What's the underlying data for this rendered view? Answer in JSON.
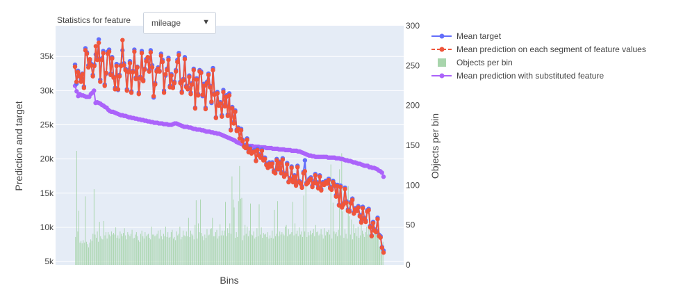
{
  "chart_data": {
    "type": "line",
    "control_label": "Statistics for feature",
    "selected_feature": "mileage",
    "xlabel": "Bins",
    "ylabel": "Prediction and target",
    "y2label": "Objects per bin",
    "ylim": [
      4500,
      39500
    ],
    "y2lim": [
      0,
      300
    ],
    "yticks": [
      5000,
      10000,
      15000,
      20000,
      25000,
      30000,
      35000
    ],
    "yticklabels": [
      "5k",
      "10k",
      "15k",
      "20k",
      "25k",
      "30k",
      "35k"
    ],
    "y2ticks": [
      0,
      50,
      100,
      150,
      200,
      250,
      300
    ],
    "y2ticklabels": [
      "0",
      "50",
      "100",
      "150",
      "200",
      "250",
      "300"
    ],
    "legend_position": "top-right",
    "colors": {
      "mean_target": "#636efa",
      "mean_prediction": "#ef553b",
      "objects_per_bin": "#a8d5ac",
      "substituted": "#ab63fa",
      "plot_bg": "#e5ecf6",
      "grid": "#ffffff"
    },
    "series": [
      {
        "name": "Mean target",
        "values": [
          33800,
          31000,
          32900,
          32300,
          31700,
          32500,
          30600,
          36200,
          35600,
          33700,
          34400,
          33900,
          32300,
          33800,
          35300,
          34700,
          37500,
          31600,
          34700,
          35800,
          30900,
          32500,
          35700,
          36000,
          32500,
          34900,
          32000,
          30400,
          33900,
          30100,
          32300,
          33800,
          35900,
          34000,
          33200,
          30200,
          33000,
          34300,
          29900,
          32900,
          36000,
          31900,
          33500,
          29700,
          32000,
          35800,
          31600,
          33200,
          34600,
          34700,
          33000,
          35900,
          33700,
          29000,
          31100,
          33000,
          33400,
          32900,
          35400,
          34500,
          30000,
          32200,
          33200,
          34800,
          30700,
          32400,
          30600,
          31300,
          33000,
          34500,
          35500,
          31300,
          29900,
          31700,
          34900,
          30700,
          30400,
          32200,
          29700,
          31100,
          33200,
          27500,
          31800,
          29500,
          33000,
          32800,
          29200,
          31000,
          27500,
          31300,
          32500,
          30700,
          28200,
          33300,
          29600,
          26100,
          29800,
          28000,
          28300,
          26400,
          30100,
          27900,
          29300,
          26500,
          29600,
          24300,
          27600,
          25400,
          27100,
          24300,
          24600,
          23000,
          24400,
          22800,
          22000,
          21800,
          23000,
          21200,
          21700,
          21000,
          21200,
          21300,
          19800,
          21500,
          20700,
          20400,
          21400,
          20000,
          20200,
          19300,
          18800,
          19500,
          19100,
          19500,
          18300,
          18100,
          20000,
          18700,
          19600,
          18100,
          20100,
          17600,
          17900,
          19400,
          16700,
          17200,
          18900,
          16800,
          17600,
          16300,
          19000,
          16800,
          16600,
          16000,
          18100,
          19800,
          16500,
          16700,
          17100,
          17300,
          16100,
          16700,
          17800,
          16600,
          15900,
          17600,
          15600,
          16600,
          16400,
          16800,
          16600,
          17100,
          15900,
          15700,
          16800,
          16300,
          14700,
          16200,
          13300,
          16100,
          13100,
          13500,
          15800,
          13800,
          12600,
          12500,
          13700,
          14200,
          12200,
          12800,
          12600,
          13100,
          11800,
          10900,
          13000,
          11400,
          11000,
          12500,
          12700,
          10200,
          8800,
          10800,
          9700,
          9500,
          11400,
          8900,
          8700,
          7100,
          6600
        ]
      },
      {
        "name": "Mean prediction on each segment of feature values",
        "values": [
          33500,
          31300,
          32700,
          32100,
          31300,
          32400,
          30400,
          35900,
          35400,
          33400,
          34600,
          33700,
          32100,
          33600,
          36500,
          34500,
          37000,
          31300,
          34500,
          35500,
          30700,
          32600,
          35400,
          35700,
          32300,
          34700,
          31900,
          30200,
          33600,
          30200,
          32100,
          33600,
          37400,
          33700,
          33000,
          30000,
          32700,
          34000,
          29700,
          32700,
          35700,
          31700,
          33400,
          29500,
          31800,
          35500,
          31400,
          33100,
          34300,
          34900,
          32800,
          35600,
          33400,
          29200,
          30900,
          32800,
          33200,
          32800,
          35100,
          34200,
          29700,
          32400,
          33000,
          34500,
          30500,
          32200,
          30400,
          31100,
          32800,
          34200,
          35200,
          31100,
          29700,
          31500,
          34600,
          30500,
          30200,
          32000,
          29500,
          30900,
          33000,
          27400,
          31600,
          29300,
          32800,
          32600,
          29400,
          30700,
          27300,
          31100,
          32300,
          30500,
          28400,
          33000,
          29400,
          26000,
          29600,
          27800,
          28100,
          26200,
          29800,
          27700,
          29100,
          26300,
          29300,
          24200,
          27400,
          25200,
          26900,
          24100,
          24400,
          23000,
          24200,
          22600,
          21800,
          21600,
          22800,
          21000,
          21500,
          20800,
          21000,
          21100,
          19700,
          21300,
          20500,
          20200,
          21200,
          19800,
          20000,
          19100,
          18700,
          19300,
          18900,
          19300,
          18100,
          17900,
          19800,
          18500,
          19400,
          17900,
          19900,
          17400,
          17700,
          19200,
          16600,
          17000,
          18700,
          16600,
          17400,
          16100,
          18800,
          16600,
          16400,
          15800,
          17900,
          18200,
          16300,
          16500,
          16900,
          17100,
          15900,
          16500,
          17600,
          16400,
          15700,
          17400,
          15400,
          16400,
          16200,
          16600,
          16400,
          16900,
          15700,
          15500,
          16600,
          16100,
          14500,
          16000,
          13200,
          15900,
          12900,
          13300,
          15600,
          13600,
          12400,
          12300,
          13500,
          14000,
          12000,
          12600,
          12400,
          12900,
          11600,
          10700,
          12800,
          11200,
          10800,
          12300,
          12500,
          10000,
          8700,
          10600,
          9500,
          9300,
          11200,
          8700,
          8500,
          7000,
          6300
        ]
      },
      {
        "name": "Objects per bin",
        "values": [
          35,
          143,
          42,
          68,
          28,
          30,
          27,
          31,
          28,
          86,
          29,
          26,
          22,
          28,
          32,
          30,
          39,
          95,
          38,
          34,
          42,
          29,
          54,
          36,
          33,
          32,
          55,
          37,
          41,
          33,
          41,
          38,
          36,
          42,
          38,
          40,
          38,
          47,
          34,
          37,
          33,
          42,
          39,
          36,
          40,
          46,
          37,
          32,
          41,
          38,
          36,
          39,
          44,
          33,
          34,
          38,
          41,
          36,
          31,
          29,
          39,
          43,
          36,
          33,
          41,
          36,
          38,
          39,
          34,
          32,
          48,
          38,
          38,
          36,
          37,
          39,
          43,
          33,
          44,
          36,
          32,
          39,
          36,
          48,
          35,
          41,
          34,
          35,
          41,
          44,
          33,
          35,
          31,
          42,
          37,
          39,
          48,
          32,
          35,
          43,
          37,
          36,
          42,
          36,
          59,
          35,
          43,
          39,
          37,
          32,
          50,
          81,
          33,
          52,
          41,
          82,
          40,
          36,
          31,
          38,
          34,
          45,
          37,
          38,
          45,
          46,
          59,
          36,
          36,
          41,
          44,
          33,
          36,
          51,
          37,
          43,
          37,
          43,
          79,
          36,
          46,
          40,
          52,
          39,
          111,
          82,
          72,
          34,
          41,
          35,
          80,
          124,
          83,
          84,
          31,
          37,
          50,
          39,
          48,
          36,
          43,
          77,
          38,
          37,
          42,
          33,
          35,
          46,
          36,
          76,
          38,
          47,
          34,
          40,
          38,
          39,
          35,
          41,
          33,
          37,
          34,
          43,
          33,
          69,
          36,
          39,
          80,
          36,
          42,
          38,
          41,
          39,
          37,
          48,
          50,
          36,
          45,
          38,
          39,
          41,
          79,
          37,
          52,
          39,
          43,
          36,
          47,
          38,
          42,
          35,
          87,
          42,
          108,
          35,
          41,
          37,
          43,
          38,
          40,
          45,
          36,
          50,
          41,
          42,
          37,
          39,
          45,
          38,
          33,
          46,
          37,
          42,
          41,
          44,
          38,
          126,
          33,
          78,
          42,
          39,
          41,
          36,
          44,
          120,
          37,
          140,
          67,
          34,
          45,
          39,
          33,
          99,
          61,
          38,
          57,
          32,
          51,
          40,
          46,
          36,
          48,
          34,
          37,
          55,
          43,
          39,
          35,
          41,
          48,
          38,
          45,
          36,
          42,
          39,
          34,
          47,
          40,
          38,
          36,
          44,
          23,
          31,
          21,
          29
        ]
      },
      {
        "name": "Mean prediction with substituted feature",
        "values": [
          30700,
          29900,
          29200,
          29500,
          29300,
          29300,
          29200,
          29100,
          29100,
          29100,
          29500,
          29700,
          30000,
          28200,
          28300,
          28200,
          28100,
          27900,
          27800,
          27600,
          27500,
          27200,
          27000,
          26900,
          26900,
          26800,
          26700,
          26600,
          26500,
          26400,
          26400,
          26300,
          26300,
          26200,
          26100,
          26100,
          26000,
          26000,
          25900,
          25900,
          25800,
          25800,
          25700,
          25700,
          25600,
          25600,
          25500,
          25500,
          25400,
          25400,
          25300,
          25300,
          25300,
          25200,
          25200,
          25200,
          25100,
          25100,
          25100,
          25000,
          25000,
          25000,
          25100,
          25200,
          25200,
          25100,
          25000,
          24900,
          24800,
          24700,
          24700,
          24700,
          24600,
          24600,
          24500,
          24400,
          24400,
          24300,
          24300,
          24300,
          24200,
          24200,
          24100,
          24000,
          24000,
          24000,
          23900,
          23900,
          23800,
          23800,
          23700,
          23700,
          23600,
          23500,
          23400,
          23300,
          23200,
          23100,
          23000,
          22900,
          22800,
          22700,
          22500,
          22400,
          22300,
          22200,
          22100,
          22000,
          22000,
          21900,
          21900,
          21900,
          21900,
          21800,
          21800,
          21800,
          21800,
          21700,
          21700,
          21700,
          21700,
          21600,
          21600,
          21600,
          21600,
          21500,
          21500,
          21500,
          21500,
          21400,
          21400,
          21400,
          21400,
          21300,
          21300,
          21300,
          21300,
          21200,
          21200,
          21200,
          21200,
          21100,
          21100,
          21000,
          20900,
          20800,
          20700,
          20600,
          20500,
          20500,
          20400,
          20400,
          20300,
          20300,
          20300,
          20300,
          20300,
          20300,
          20300,
          20300,
          20200,
          20200,
          20200,
          20200,
          20200,
          20100,
          20100,
          20100,
          20000,
          20000,
          19900,
          19800,
          19800,
          19700,
          19700,
          19600,
          19500,
          19500,
          19400,
          19300,
          19300,
          19200,
          19100,
          19000,
          19000,
          19000,
          18800,
          18800,
          18700,
          18700,
          18600,
          18500,
          18300,
          18200,
          18000,
          17400
        ]
      }
    ]
  }
}
